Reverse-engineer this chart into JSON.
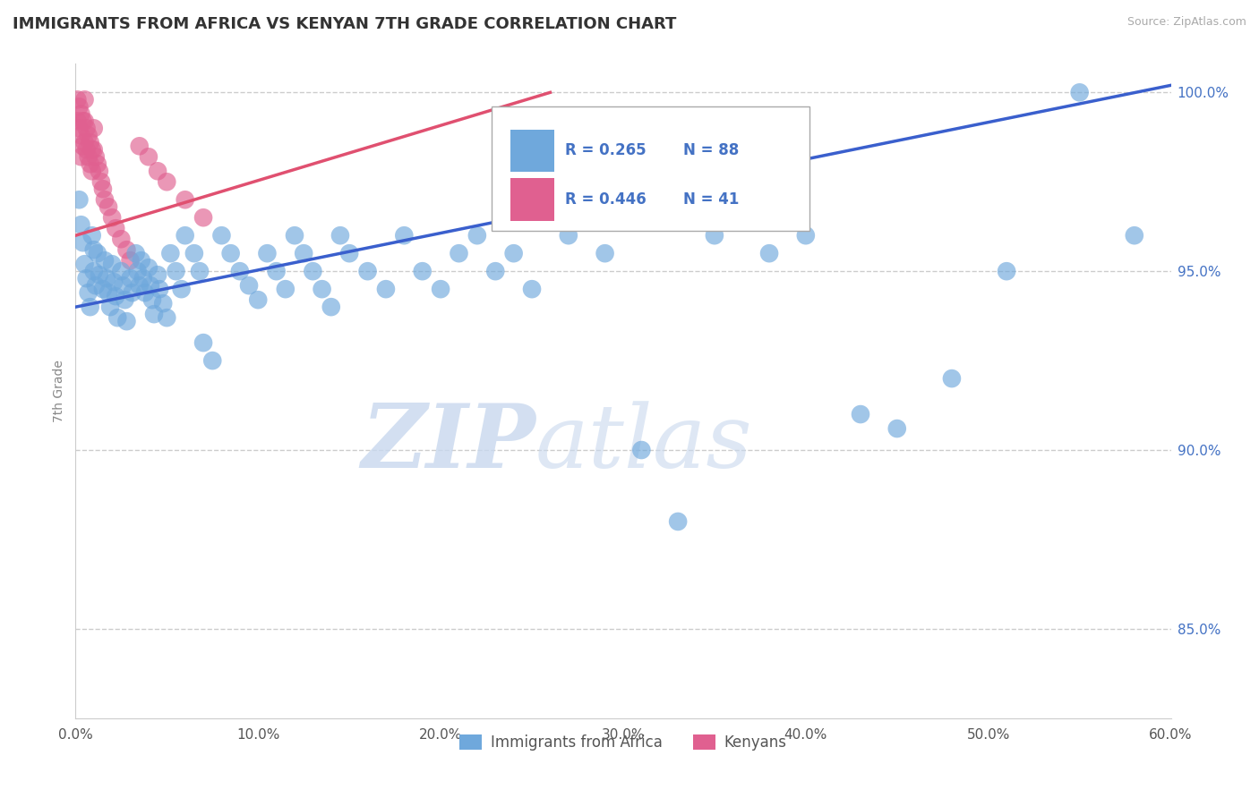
{
  "title": "IMMIGRANTS FROM AFRICA VS KENYAN 7TH GRADE CORRELATION CHART",
  "source": "Source: ZipAtlas.com",
  "xlabel": "",
  "ylabel": "7th Grade",
  "xlim": [
    0.0,
    0.6
  ],
  "ylim": [
    0.825,
    1.008
  ],
  "xtick_labels": [
    "0.0%",
    "10.0%",
    "20.0%",
    "30.0%",
    "40.0%",
    "50.0%",
    "60.0%"
  ],
  "xtick_vals": [
    0.0,
    0.1,
    0.2,
    0.3,
    0.4,
    0.5,
    0.6
  ],
  "ytick_labels": [
    "85.0%",
    "90.0%",
    "95.0%",
    "100.0%"
  ],
  "ytick_vals": [
    0.85,
    0.9,
    0.95,
    1.0
  ],
  "legend_r_blue": "R = 0.265",
  "legend_n_blue": "N = 88",
  "legend_r_pink": "R = 0.446",
  "legend_n_pink": "N = 41",
  "legend_label_blue": "Immigrants from Africa",
  "legend_label_pink": "Kenyans",
  "blue_color": "#6fa8dc",
  "pink_color": "#e06090",
  "trend_blue": "#3a5fcd",
  "trend_pink": "#e05070",
  "watermark_zip": "ZIP",
  "watermark_atlas": "atlas",
  "blue_scatter_x": [
    0.002,
    0.003,
    0.004,
    0.005,
    0.006,
    0.007,
    0.008,
    0.009,
    0.01,
    0.01,
    0.011,
    0.012,
    0.013,
    0.015,
    0.016,
    0.017,
    0.018,
    0.019,
    0.02,
    0.021,
    0.022,
    0.023,
    0.025,
    0.026,
    0.027,
    0.028,
    0.03,
    0.031,
    0.033,
    0.034,
    0.035,
    0.036,
    0.037,
    0.038,
    0.04,
    0.041,
    0.042,
    0.043,
    0.045,
    0.046,
    0.048,
    0.05,
    0.052,
    0.055,
    0.058,
    0.06,
    0.065,
    0.068,
    0.07,
    0.075,
    0.08,
    0.085,
    0.09,
    0.095,
    0.1,
    0.105,
    0.11,
    0.115,
    0.12,
    0.125,
    0.13,
    0.135,
    0.14,
    0.145,
    0.15,
    0.16,
    0.17,
    0.18,
    0.19,
    0.2,
    0.21,
    0.22,
    0.23,
    0.24,
    0.25,
    0.27,
    0.29,
    0.31,
    0.33,
    0.35,
    0.38,
    0.4,
    0.43,
    0.45,
    0.48,
    0.51,
    0.55,
    0.58
  ],
  "blue_scatter_y": [
    0.97,
    0.963,
    0.958,
    0.952,
    0.948,
    0.944,
    0.94,
    0.96,
    0.956,
    0.95,
    0.946,
    0.955,
    0.949,
    0.945,
    0.953,
    0.948,
    0.944,
    0.94,
    0.952,
    0.947,
    0.943,
    0.937,
    0.95,
    0.946,
    0.942,
    0.936,
    0.948,
    0.944,
    0.955,
    0.95,
    0.946,
    0.953,
    0.948,
    0.944,
    0.951,
    0.946,
    0.942,
    0.938,
    0.949,
    0.945,
    0.941,
    0.937,
    0.955,
    0.95,
    0.945,
    0.96,
    0.955,
    0.95,
    0.93,
    0.925,
    0.96,
    0.955,
    0.95,
    0.946,
    0.942,
    0.955,
    0.95,
    0.945,
    0.96,
    0.955,
    0.95,
    0.945,
    0.94,
    0.96,
    0.955,
    0.95,
    0.945,
    0.96,
    0.95,
    0.945,
    0.955,
    0.96,
    0.95,
    0.955,
    0.945,
    0.96,
    0.955,
    0.9,
    0.88,
    0.96,
    0.955,
    0.96,
    0.91,
    0.906,
    0.92,
    0.95,
    1.0,
    0.96
  ],
  "pink_scatter_x": [
    0.001,
    0.001,
    0.002,
    0.002,
    0.003,
    0.003,
    0.003,
    0.004,
    0.004,
    0.005,
    0.005,
    0.005,
    0.006,
    0.006,
    0.007,
    0.007,
    0.008,
    0.008,
    0.009,
    0.009,
    0.01,
    0.01,
    0.011,
    0.012,
    0.013,
    0.014,
    0.015,
    0.016,
    0.018,
    0.02,
    0.022,
    0.025,
    0.028,
    0.03,
    0.035,
    0.04,
    0.045,
    0.05,
    0.06,
    0.07,
    0.25
  ],
  "pink_scatter_y": [
    0.998,
    0.992,
    0.996,
    0.99,
    0.994,
    0.988,
    0.982,
    0.992,
    0.985,
    0.998,
    0.992,
    0.986,
    0.99,
    0.984,
    0.988,
    0.982,
    0.986,
    0.98,
    0.984,
    0.978,
    0.99,
    0.984,
    0.982,
    0.98,
    0.978,
    0.975,
    0.973,
    0.97,
    0.968,
    0.965,
    0.962,
    0.959,
    0.956,
    0.953,
    0.985,
    0.982,
    0.978,
    0.975,
    0.97,
    0.965,
    0.97
  ],
  "blue_trend_x": [
    0.0,
    0.6
  ],
  "blue_trend_y": [
    0.94,
    1.002
  ],
  "pink_trend_x": [
    0.0,
    0.26
  ],
  "pink_trend_y": [
    0.96,
    1.0
  ]
}
